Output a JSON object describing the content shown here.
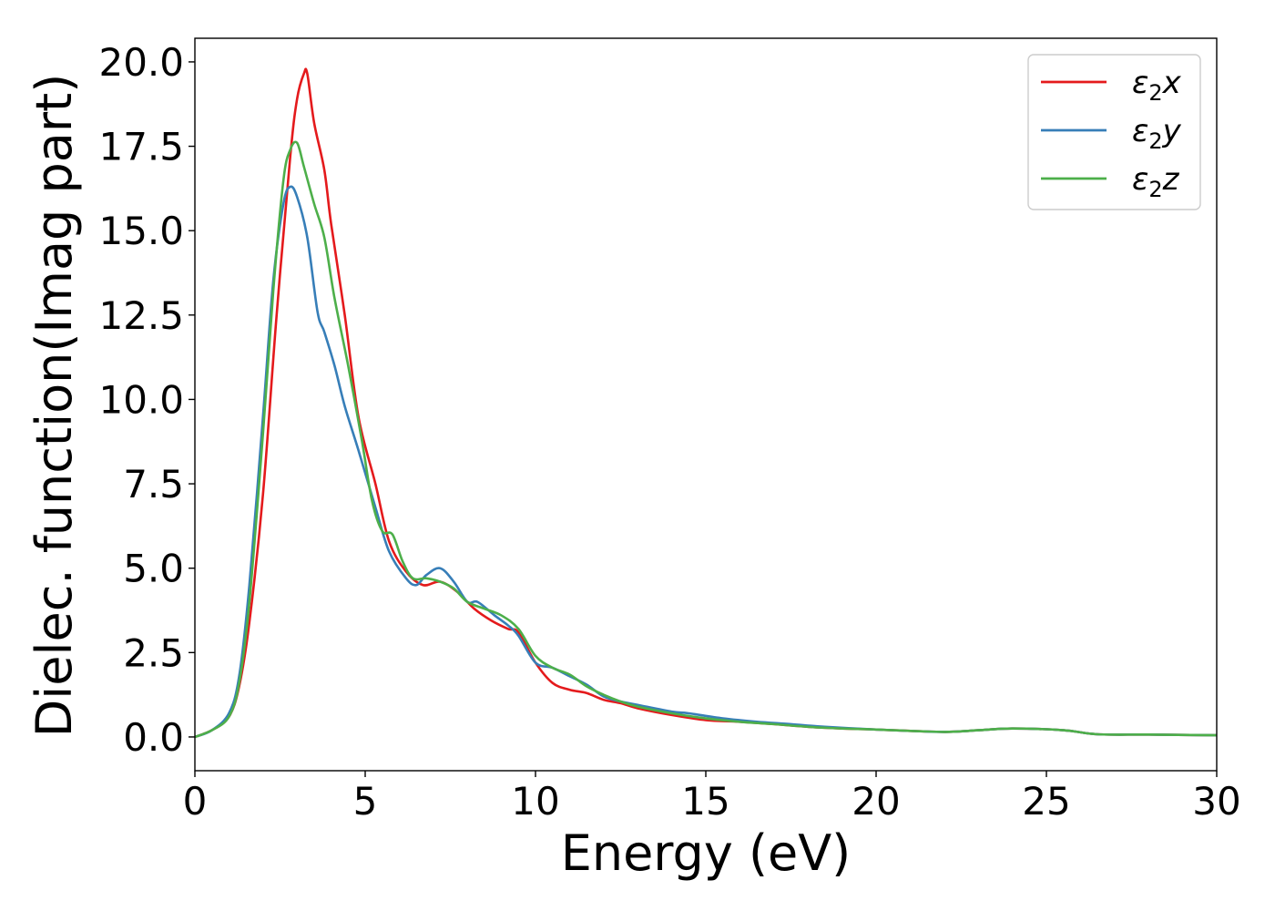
{
  "chart_data": {
    "type": "line",
    "xlabel": "Energy (eV)",
    "ylabel": "Dielec. function(Imag part)",
    "xlim": [
      0,
      30
    ],
    "ylim": [
      -1.0,
      20.7
    ],
    "xticks": [
      0,
      5,
      10,
      15,
      20,
      25,
      30
    ],
    "xtick_labels": [
      "0",
      "5",
      "10",
      "15",
      "20",
      "25",
      "30"
    ],
    "yticks": [
      0,
      2.5,
      5,
      7.5,
      10,
      12.5,
      15,
      17.5,
      20
    ],
    "ytick_labels": [
      "0.0",
      "2.5",
      "5.0",
      "7.5",
      "10.0",
      "12.5",
      "15.0",
      "17.5",
      "20.0"
    ],
    "grid": false,
    "legend_position": "top-right",
    "series": [
      {
        "name": "ε2x",
        "legend_symbol": "ε",
        "legend_sub": "2",
        "legend_var": "x",
        "color": "#e41a1c",
        "x": [
          0,
          0.5,
          1.0,
          1.3,
          1.6,
          2.0,
          2.4,
          2.8,
          3.0,
          3.2,
          3.3,
          3.5,
          3.8,
          4.0,
          4.4,
          4.8,
          5.3,
          5.7,
          6.2,
          6.7,
          7.2,
          7.7,
          8.2,
          8.7,
          9.2,
          9.5,
          10.0,
          10.5,
          11.0,
          11.5,
          12.0,
          12.5,
          13.0,
          14.0,
          15.0,
          16.0,
          17.0,
          18.0,
          19.0,
          20.0,
          22.0,
          23.0,
          24.0,
          25.5,
          26.5,
          28.0,
          30.0
        ],
        "y": [
          0,
          0.2,
          0.6,
          1.5,
          3.4,
          7.2,
          12.5,
          17.2,
          18.9,
          19.65,
          19.65,
          18.2,
          16.8,
          15.2,
          12.5,
          9.5,
          7.5,
          5.8,
          4.9,
          4.5,
          4.6,
          4.3,
          3.8,
          3.45,
          3.2,
          3.1,
          2.2,
          1.6,
          1.4,
          1.3,
          1.1,
          1.0,
          0.85,
          0.65,
          0.5,
          0.45,
          0.38,
          0.3,
          0.25,
          0.22,
          0.15,
          0.2,
          0.25,
          0.2,
          0.08,
          0.07,
          0.05
        ]
      },
      {
        "name": "ε2y",
        "legend_symbol": "ε",
        "legend_sub": "2",
        "legend_var": "y",
        "color": "#377eb8",
        "x": [
          0,
          0.5,
          1.0,
          1.3,
          1.6,
          2.0,
          2.3,
          2.6,
          2.8,
          3.0,
          3.3,
          3.6,
          3.8,
          4.1,
          4.4,
          4.8,
          5.3,
          5.7,
          6.2,
          6.5,
          6.8,
          7.2,
          7.6,
          8.0,
          8.3,
          8.8,
          9.2,
          9.5,
          10.0,
          10.5,
          11.0,
          11.5,
          12.0,
          12.5,
          13.0,
          14.0,
          14.5,
          15.5,
          16.5,
          17.5,
          18.5,
          20.0,
          22.0,
          23.0,
          24.0,
          25.5,
          26.5,
          28.0,
          30.0
        ],
        "y": [
          0,
          0.2,
          0.7,
          1.8,
          4.5,
          9.5,
          13.5,
          15.8,
          16.3,
          16.0,
          14.8,
          12.6,
          12.0,
          11.0,
          9.8,
          8.5,
          6.8,
          5.5,
          4.7,
          4.5,
          4.8,
          5.0,
          4.6,
          4.0,
          4.0,
          3.6,
          3.3,
          3.0,
          2.2,
          2.05,
          1.8,
          1.55,
          1.2,
          1.05,
          0.95,
          0.75,
          0.7,
          0.55,
          0.45,
          0.38,
          0.3,
          0.22,
          0.15,
          0.2,
          0.25,
          0.2,
          0.08,
          0.07,
          0.05
        ]
      },
      {
        "name": "ε2z",
        "legend_symbol": "ε",
        "legend_sub": "2",
        "legend_var": "z",
        "color": "#4daf4a",
        "x": [
          0,
          0.5,
          1.0,
          1.3,
          1.6,
          2.0,
          2.3,
          2.6,
          2.8,
          3.0,
          3.2,
          3.5,
          3.8,
          4.1,
          4.5,
          4.9,
          5.2,
          5.5,
          5.8,
          6.1,
          6.4,
          6.8,
          7.2,
          7.6,
          8.0,
          8.5,
          9.0,
          9.5,
          10.0,
          10.5,
          11.0,
          11.5,
          12.0,
          12.5,
          13.0,
          14.0,
          15.0,
          16.0,
          17.0,
          18.0,
          19.0,
          20.0,
          22.0,
          23.0,
          24.0,
          25.5,
          26.5,
          28.0,
          30.0
        ],
        "y": [
          0,
          0.2,
          0.6,
          1.6,
          4.0,
          9.0,
          13.2,
          16.5,
          17.4,
          17.6,
          16.9,
          15.8,
          14.8,
          13.0,
          11.0,
          8.8,
          7.0,
          6.1,
          6.0,
          5.2,
          4.7,
          4.7,
          4.6,
          4.4,
          4.0,
          3.8,
          3.6,
          3.2,
          2.4,
          2.05,
          1.85,
          1.5,
          1.25,
          1.05,
          0.9,
          0.7,
          0.55,
          0.45,
          0.38,
          0.3,
          0.25,
          0.22,
          0.15,
          0.2,
          0.25,
          0.2,
          0.08,
          0.07,
          0.05
        ]
      }
    ]
  }
}
